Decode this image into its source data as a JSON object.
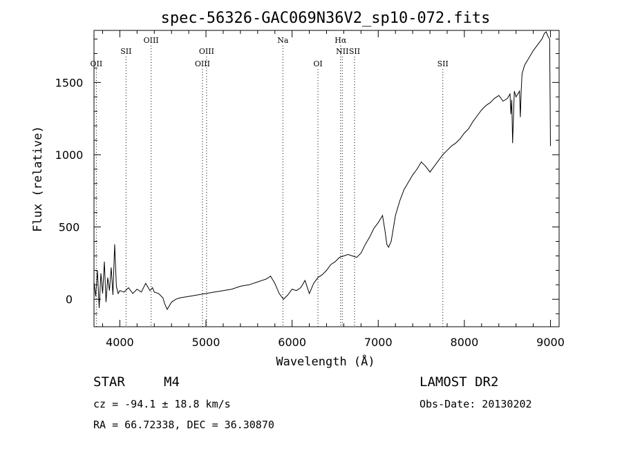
{
  "chart_data": {
    "type": "line",
    "title": "spec-56326-GAC069N36V2_sp10-072.fits",
    "xlabel": "Wavelength (Å)",
    "ylabel": "Flux (relative)",
    "xlim": [
      3700,
      9100
    ],
    "ylim": [
      -190,
      1860
    ],
    "xticks": [
      4000,
      5000,
      6000,
      7000,
      8000,
      9000
    ],
    "yticks": [
      0,
      500,
      1000,
      1500
    ],
    "grid": false,
    "series": [
      {
        "color": "#000000",
        "x": [
          3700,
          3720,
          3740,
          3760,
          3780,
          3800,
          3820,
          3840,
          3860,
          3880,
          3900,
          3920,
          3940,
          3960,
          3980,
          4000,
          4050,
          4100,
          4150,
          4200,
          4250,
          4300,
          4350,
          4380,
          4400,
          4450,
          4500,
          4520,
          4550,
          4600,
          4650,
          4700,
          4800,
          4900,
          5000,
          5100,
          5200,
          5300,
          5400,
          5500,
          5600,
          5700,
          5750,
          5800,
          5850,
          5900,
          5950,
          6000,
          6050,
          6100,
          6150,
          6200,
          6250,
          6300,
          6350,
          6400,
          6450,
          6500,
          6550,
          6600,
          6650,
          6700,
          6750,
          6800,
          6850,
          6900,
          6950,
          7000,
          7050,
          7080,
          7100,
          7120,
          7150,
          7200,
          7250,
          7300,
          7350,
          7400,
          7450,
          7500,
          7550,
          7600,
          7650,
          7700,
          7750,
          7800,
          7850,
          7900,
          7950,
          8000,
          8050,
          8100,
          8150,
          8200,
          8250,
          8300,
          8350,
          8400,
          8450,
          8500,
          8530,
          8540,
          8550,
          8560,
          8580,
          8600,
          8640,
          8650,
          8660,
          8670,
          8700,
          8750,
          8800,
          8850,
          8900,
          8930,
          8950,
          8970,
          8990,
          9000
        ],
        "y": [
          120,
          20,
          200,
          -60,
          180,
          40,
          260,
          -20,
          150,
          60,
          220,
          30,
          380,
          90,
          40,
          60,
          50,
          80,
          40,
          70,
          50,
          110,
          60,
          80,
          50,
          40,
          10,
          -30,
          -70,
          -20,
          0,
          10,
          20,
          30,
          40,
          50,
          60,
          70,
          90,
          100,
          120,
          140,
          160,
          110,
          40,
          0,
          30,
          70,
          60,
          80,
          130,
          40,
          110,
          150,
          170,
          200,
          240,
          260,
          290,
          300,
          310,
          300,
          290,
          320,
          380,
          430,
          490,
          530,
          580,
          470,
          380,
          360,
          400,
          580,
          680,
          760,
          810,
          860,
          900,
          950,
          920,
          880,
          920,
          960,
          1000,
          1030,
          1060,
          1080,
          1110,
          1150,
          1180,
          1230,
          1270,
          1310,
          1340,
          1360,
          1390,
          1410,
          1370,
          1390,
          1420,
          1280,
          1380,
          1080,
          1440,
          1400,
          1440,
          1260,
          1450,
          1560,
          1620,
          1670,
          1720,
          1760,
          1800,
          1840,
          1850,
          1820,
          1800,
          1060
        ]
      }
    ],
    "line_labels": [
      {
        "x": 3727,
        "text": "OII",
        "row": 3
      },
      {
        "x": 4072,
        "text": "SII",
        "row": 2
      },
      {
        "x": 4363,
        "text": "OIII",
        "row": 1
      },
      {
        "x": 4959,
        "text": "OIII",
        "row": 3
      },
      {
        "x": 5007,
        "text": "OIII",
        "row": 2
      },
      {
        "x": 5893,
        "text": "Na",
        "row": 1
      },
      {
        "x": 6300,
        "text": "OI",
        "row": 3
      },
      {
        "x": 6563,
        "text": "Hα",
        "row": 1
      },
      {
        "x": 6583,
        "text": "NII",
        "row": 2
      },
      {
        "x": 6725,
        "text": "SII",
        "row": 2
      },
      {
        "x": 7750,
        "text": "SII",
        "row": 3
      }
    ]
  },
  "info": {
    "class_label": "STAR",
    "subclass_label": "M4",
    "survey_label": "LAMOST DR2",
    "cz_text": "cz = -94.1 ± 18.8 km/s",
    "obs_date_text": "Obs-Date: 20130202",
    "radec_text": "RA =  66.72338, DEC =  36.30870"
  }
}
